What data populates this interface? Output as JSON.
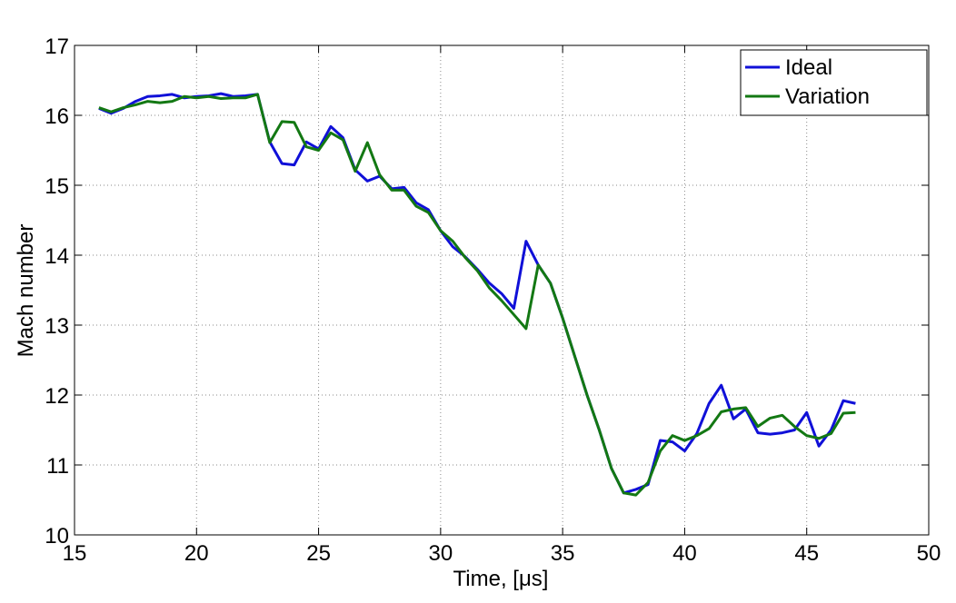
{
  "chart_data": {
    "type": "line",
    "xlabel": "Time, [μs]",
    "ylabel": "Mach number",
    "xlim": [
      15,
      50
    ],
    "ylim": [
      10,
      17
    ],
    "xticks": [
      15,
      20,
      25,
      30,
      35,
      40,
      45,
      50
    ],
    "yticks": [
      10,
      11,
      12,
      13,
      14,
      15,
      16,
      17
    ],
    "grid": true,
    "legend_position": "top-right",
    "series": [
      {
        "name": "Ideal",
        "color": "#1010d8",
        "points": [
          [
            16.0,
            16.1
          ],
          [
            16.5,
            16.03
          ],
          [
            17.0,
            16.1
          ],
          [
            17.5,
            16.2
          ],
          [
            18.0,
            16.27
          ],
          [
            18.5,
            16.28
          ],
          [
            19.0,
            16.3
          ],
          [
            19.5,
            16.25
          ],
          [
            20.0,
            16.27
          ],
          [
            20.5,
            16.28
          ],
          [
            21.0,
            16.31
          ],
          [
            21.5,
            16.27
          ],
          [
            22.0,
            16.28
          ],
          [
            22.5,
            16.3
          ],
          [
            23.0,
            15.62
          ],
          [
            23.5,
            15.31
          ],
          [
            24.0,
            15.29
          ],
          [
            24.5,
            15.62
          ],
          [
            25.0,
            15.52
          ],
          [
            25.5,
            15.84
          ],
          [
            26.0,
            15.68
          ],
          [
            26.5,
            15.22
          ],
          [
            27.0,
            15.06
          ],
          [
            27.5,
            15.13
          ],
          [
            28.0,
            14.95
          ],
          [
            28.5,
            14.97
          ],
          [
            29.0,
            14.75
          ],
          [
            29.5,
            14.65
          ],
          [
            30.0,
            14.35
          ],
          [
            30.5,
            14.12
          ],
          [
            31.0,
            13.98
          ],
          [
            31.5,
            13.8
          ],
          [
            32.0,
            13.6
          ],
          [
            32.5,
            13.45
          ],
          [
            33.0,
            13.24
          ],
          [
            33.5,
            14.2
          ],
          [
            34.0,
            13.86
          ],
          [
            34.5,
            13.6
          ],
          [
            35.0,
            13.1
          ],
          [
            35.5,
            12.55
          ],
          [
            36.0,
            12.0
          ],
          [
            36.5,
            11.5
          ],
          [
            37.0,
            10.95
          ],
          [
            37.5,
            10.6
          ],
          [
            38.0,
            10.65
          ],
          [
            38.5,
            10.72
          ],
          [
            39.0,
            11.35
          ],
          [
            39.5,
            11.33
          ],
          [
            40.0,
            11.2
          ],
          [
            40.5,
            11.45
          ],
          [
            41.0,
            11.88
          ],
          [
            41.5,
            12.14
          ],
          [
            42.0,
            11.66
          ],
          [
            42.5,
            11.8
          ],
          [
            43.0,
            11.46
          ],
          [
            43.5,
            11.44
          ],
          [
            44.0,
            11.46
          ],
          [
            44.5,
            11.5
          ],
          [
            45.0,
            11.75
          ],
          [
            45.5,
            11.27
          ],
          [
            46.0,
            11.5
          ],
          [
            46.5,
            11.92
          ],
          [
            47.0,
            11.88
          ]
        ]
      },
      {
        "name": "Variation",
        "color": "#137813",
        "points": [
          [
            16.0,
            16.11
          ],
          [
            16.5,
            16.05
          ],
          [
            17.0,
            16.11
          ],
          [
            17.5,
            16.15
          ],
          [
            18.0,
            16.2
          ],
          [
            18.5,
            16.18
          ],
          [
            19.0,
            16.2
          ],
          [
            19.5,
            16.27
          ],
          [
            20.0,
            16.25
          ],
          [
            20.5,
            16.27
          ],
          [
            21.0,
            16.24
          ],
          [
            21.5,
            16.25
          ],
          [
            22.0,
            16.25
          ],
          [
            22.5,
            16.3
          ],
          [
            23.0,
            15.61
          ],
          [
            23.5,
            15.91
          ],
          [
            24.0,
            15.9
          ],
          [
            24.5,
            15.55
          ],
          [
            25.0,
            15.5
          ],
          [
            25.5,
            15.75
          ],
          [
            26.0,
            15.65
          ],
          [
            26.5,
            15.2
          ],
          [
            27.0,
            15.61
          ],
          [
            27.5,
            15.15
          ],
          [
            28.0,
            14.93
          ],
          [
            28.5,
            14.93
          ],
          [
            29.0,
            14.7
          ],
          [
            29.5,
            14.61
          ],
          [
            30.0,
            14.35
          ],
          [
            30.5,
            14.2
          ],
          [
            31.0,
            13.97
          ],
          [
            31.5,
            13.78
          ],
          [
            32.0,
            13.53
          ],
          [
            32.5,
            13.35
          ],
          [
            33.0,
            13.15
          ],
          [
            33.5,
            12.95
          ],
          [
            34.0,
            13.86
          ],
          [
            34.5,
            13.6
          ],
          [
            35.0,
            13.1
          ],
          [
            35.5,
            12.55
          ],
          [
            36.0,
            12.0
          ],
          [
            36.5,
            11.5
          ],
          [
            37.0,
            10.95
          ],
          [
            37.5,
            10.6
          ],
          [
            38.0,
            10.57
          ],
          [
            38.5,
            10.75
          ],
          [
            39.0,
            11.2
          ],
          [
            39.5,
            11.42
          ],
          [
            40.0,
            11.35
          ],
          [
            40.5,
            11.42
          ],
          [
            41.0,
            11.52
          ],
          [
            41.5,
            11.76
          ],
          [
            42.0,
            11.8
          ],
          [
            42.5,
            11.82
          ],
          [
            43.0,
            11.55
          ],
          [
            43.5,
            11.67
          ],
          [
            44.0,
            11.71
          ],
          [
            44.5,
            11.55
          ],
          [
            45.0,
            11.42
          ],
          [
            45.5,
            11.38
          ],
          [
            46.0,
            11.45
          ],
          [
            46.5,
            11.74
          ],
          [
            47.0,
            11.75
          ]
        ]
      }
    ]
  }
}
